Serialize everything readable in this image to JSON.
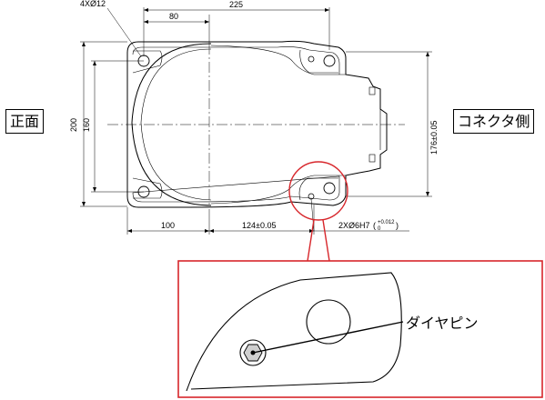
{
  "views": {
    "front_label": "正面",
    "connector_label": "コネクタ側"
  },
  "dimensions": {
    "holes": "4XØ12",
    "width_80": "80",
    "width_225": "225",
    "height_200": "200",
    "height_160": "160",
    "height_176": "176±0.05",
    "bottom_100": "100",
    "bottom_124": "124±0.05",
    "pin_holes": "2XØ6H7",
    "tol_upper": "+0.012",
    "tol_lower": "0"
  },
  "callout": {
    "label": "ダイヤピン"
  },
  "colors": {
    "line": "#000000",
    "callout": "#d7262b"
  }
}
